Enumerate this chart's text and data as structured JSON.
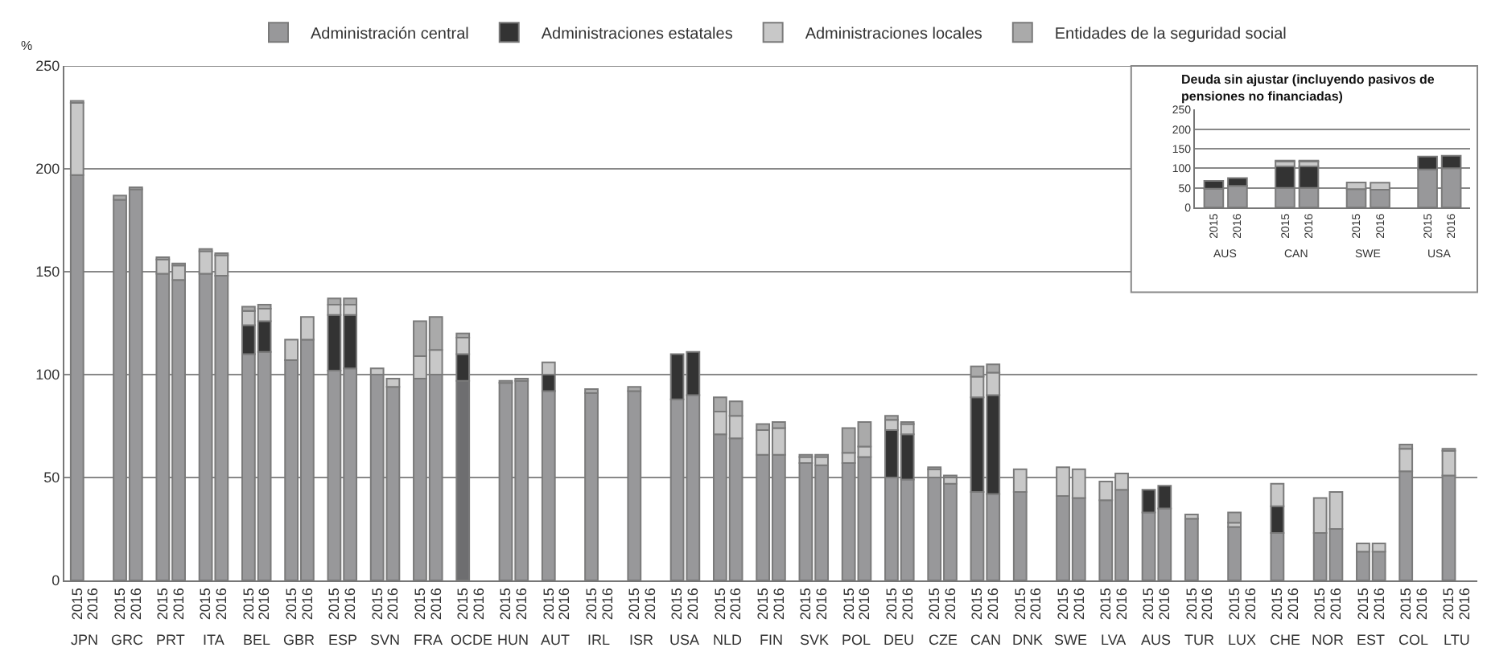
{
  "chart_data": [
    {
      "type": "bar",
      "stacked": true,
      "ylabel": "%",
      "ylim": [
        0,
        250
      ],
      "yticks": [
        0,
        50,
        100,
        150,
        200,
        250
      ],
      "grid": "y",
      "legend": "top",
      "categories": [
        "2015",
        "2016",
        "2015",
        "2016",
        "2015",
        "2016",
        "2015",
        "2016",
        "2015",
        "2016",
        "2015",
        "2016",
        "2015",
        "2016",
        "2015",
        "2016",
        "2015",
        "2016",
        "2015",
        "2016",
        "2015",
        "2016",
        "2015",
        "2016",
        "2015",
        "2016",
        "2015",
        "2016",
        "2015",
        "2016",
        "2015",
        "2016",
        "2015",
        "2016",
        "2015",
        "2016",
        "2015",
        "2016",
        "2015",
        "2016",
        "2015",
        "2016",
        "2015",
        "2016",
        "2015",
        "2016",
        "2015",
        "2016",
        "2015",
        "2016",
        "2015",
        "2016",
        "2015",
        "2016",
        "2015",
        "2016",
        "2015",
        "2016",
        "2015",
        "2016",
        "2015",
        "2016",
        "2015",
        "2016",
        "2015",
        "2016"
      ],
      "annotations": [
        "JPN",
        "GRC",
        "PRT",
        "ITA",
        "BEL",
        "GBR",
        "ESP",
        "SVN",
        "FRA",
        "OCDE",
        "HUN",
        "AUT",
        "IRL",
        "ISR",
        "USA",
        "NLD",
        "FIN",
        "SVK",
        "POL",
        "DEU",
        "CZE",
        "CAN",
        "DNK",
        "SWE",
        "LVA",
        "AUS",
        "TUR",
        "LUX",
        "CHE",
        "NOR",
        "EST",
        "COL",
        "LTU"
      ],
      "series": [
        {
          "name": "Administración central",
          "color": "#98989a",
          "colors": [
            "#98989a",
            "#98989a",
            "#98989a",
            "#98989a",
            "#98989a",
            "#98989a",
            "#98989a",
            "#98989a",
            "#98989a",
            "#98989a",
            "#98989a",
            "#98989a",
            "#98989a",
            "#98989a",
            "#98989a",
            "#98989a",
            "#98989a",
            "#98989a",
            "#6e6e70",
            "#98989a",
            "#98989a",
            "#98989a",
            "#98989a",
            "#98989a",
            "#98989a",
            "#98989a",
            "#98989a",
            "#98989a",
            "#98989a",
            "#98989a",
            "#98989a",
            "#98989a",
            "#98989a",
            "#98989a",
            "#98989a",
            "#98989a",
            "#98989a",
            "#98989a",
            "#98989a",
            "#98989a",
            "#98989a",
            "#98989a",
            "#98989a",
            "#98989a",
            "#98989a",
            "#98989a",
            "#98989a",
            "#98989a",
            "#98989a",
            "#98989a",
            "#98989a",
            "#98989a",
            "#98989a",
            "#98989a",
            "#98989a",
            "#98989a",
            "#98989a",
            "#98989a",
            "#98989a",
            "#98989a",
            "#98989a",
            "#98989a",
            "#98989a",
            "#98989a",
            "#98989a",
            "#98989a"
          ],
          "values": [
            197,
            null,
            185,
            190,
            149,
            146,
            149,
            148,
            110,
            111,
            107,
            117,
            102,
            103,
            100,
            94,
            98,
            100,
            97,
            null,
            96,
            97,
            92,
            null,
            91,
            null,
            92,
            null,
            88,
            90,
            71,
            69,
            61,
            61,
            57,
            56,
            57,
            60,
            50,
            49,
            50,
            47,
            43,
            42,
            43,
            null,
            41,
            40,
            39,
            44,
            33,
            35,
            30,
            null,
            26,
            null,
            23,
            null,
            23,
            25,
            14,
            14,
            53,
            null,
            51,
            null
          ]
        },
        {
          "name": "Administraciones estatales",
          "color": "#333333",
          "values": [
            null,
            null,
            null,
            null,
            null,
            null,
            null,
            null,
            14,
            15,
            null,
            null,
            27,
            26,
            null,
            null,
            null,
            null,
            13,
            null,
            null,
            null,
            8,
            null,
            null,
            null,
            null,
            null,
            22,
            21,
            null,
            null,
            null,
            null,
            null,
            null,
            null,
            null,
            23,
            22,
            null,
            null,
            46,
            48,
            null,
            null,
            null,
            null,
            null,
            null,
            11,
            11,
            null,
            null,
            null,
            null,
            13,
            null,
            null,
            null,
            null,
            null,
            null,
            null,
            null,
            null
          ]
        },
        {
          "name": "Administraciones locales",
          "color": "#c8c8c8",
          "values": [
            35,
            null,
            null,
            null,
            7,
            7,
            11,
            10,
            7,
            6,
            10,
            11,
            5,
            5,
            3,
            4,
            11,
            12,
            8,
            null,
            null,
            null,
            6,
            null,
            null,
            null,
            null,
            null,
            null,
            null,
            11,
            11,
            12,
            13,
            3,
            4,
            5,
            5,
            5,
            5,
            4,
            3,
            10,
            11,
            11,
            null,
            14,
            14,
            9,
            8,
            null,
            null,
            2,
            null,
            2,
            null,
            11,
            null,
            17,
            18,
            4,
            4,
            11,
            null,
            12,
            null
          ]
        },
        {
          "name": "Entidades de la seguridad social",
          "color": "#aaaaaa",
          "values": [
            1,
            null,
            2,
            1,
            1,
            1,
            1,
            1,
            2,
            2,
            null,
            null,
            3,
            3,
            null,
            null,
            17,
            16,
            2,
            null,
            1,
            1,
            null,
            null,
            2,
            null,
            2,
            null,
            null,
            null,
            7,
            7,
            3,
            3,
            1,
            1,
            12,
            12,
            2,
            1,
            1,
            1,
            5,
            4,
            null,
            null,
            null,
            null,
            null,
            null,
            null,
            null,
            null,
            null,
            5,
            null,
            null,
            null,
            null,
            null,
            null,
            null,
            2,
            null,
            1,
            null
          ]
        }
      ]
    },
    {
      "type": "bar",
      "stacked": true,
      "title": "Deuda sin ajustar (incluyendo pasivos de pensiones no financiadas)",
      "ylim": [
        0,
        250
      ],
      "yticks": [
        0,
        50,
        100,
        150,
        200,
        250
      ],
      "grid": "y",
      "categories": [
        "2015",
        "2016",
        "2015",
        "2016",
        "2015",
        "2016",
        "2015",
        "2016"
      ],
      "annotations": [
        "AUS",
        "CAN",
        "SWE",
        "USA"
      ],
      "series": [
        {
          "color": "#98989a",
          "values": [
            48,
            55,
            50,
            50,
            47,
            45,
            97,
            100
          ]
        },
        {
          "color": "#333333",
          "values": [
            20,
            20,
            55,
            55,
            null,
            null,
            33,
            32
          ]
        },
        {
          "color": "#c8c8c8",
          "values": [
            null,
            null,
            12,
            12,
            17,
            18,
            null,
            null
          ]
        },
        {
          "color": "#aaaaaa",
          "values": [
            null,
            null,
            3,
            3,
            null,
            null,
            null,
            null
          ]
        }
      ]
    }
  ]
}
